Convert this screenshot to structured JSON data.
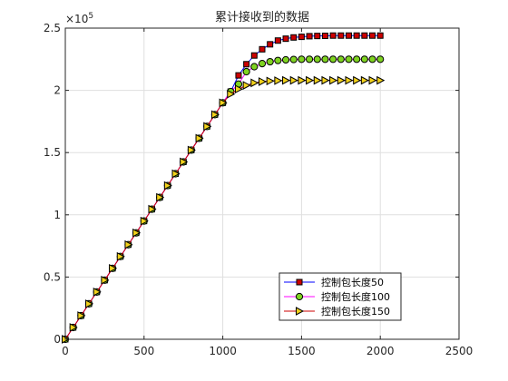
{
  "chart_data": {
    "type": "line",
    "title": "累计接收到的数据",
    "xlabel": "",
    "ylabel": "",
    "xlim": [
      0,
      2500
    ],
    "ylim": [
      0,
      2.5
    ],
    "y_exponent_label": "×10",
    "y_exponent_power": "5",
    "xticks": [
      0,
      500,
      1000,
      1500,
      2000,
      2500
    ],
    "xtick_labels": [
      "0",
      "500",
      "1000",
      "1500",
      "2000",
      "2500"
    ],
    "yticks": [
      0,
      0.5,
      1,
      1.5,
      2,
      2.5
    ],
    "ytick_labels": [
      "0",
      "0.5",
      "1",
      "1.5",
      "2",
      "2.5"
    ],
    "grid": true,
    "legend_position": "bottom-right",
    "x": [
      0,
      50,
      100,
      150,
      200,
      250,
      300,
      350,
      400,
      450,
      500,
      550,
      600,
      650,
      700,
      750,
      800,
      850,
      900,
      950,
      1000,
      1050,
      1100,
      1150,
      1200,
      1250,
      1300,
      1350,
      1400,
      1450,
      1500,
      1550,
      1600,
      1650,
      1700,
      1750,
      1800,
      1850,
      1900,
      1950,
      2000
    ],
    "series": [
      {
        "name": "控制包长度50",
        "line_color": "#0000ff",
        "marker": "square",
        "marker_fill": "#cc0000",
        "values": [
          0,
          0.095,
          0.19,
          0.285,
          0.38,
          0.475,
          0.57,
          0.665,
          0.76,
          0.855,
          0.95,
          1.045,
          1.14,
          1.235,
          1.33,
          1.425,
          1.52,
          1.615,
          1.71,
          1.805,
          1.9,
          1.99,
          2.12,
          2.21,
          2.28,
          2.33,
          2.37,
          2.4,
          2.415,
          2.425,
          2.43,
          2.435,
          2.437,
          2.438,
          2.44,
          2.44,
          2.44,
          2.44,
          2.44,
          2.44,
          2.44
        ]
      },
      {
        "name": "控制包长度100",
        "line_color": "#ff00ff",
        "marker": "circle",
        "marker_fill": "#7fd321",
        "values": [
          0,
          0.095,
          0.19,
          0.285,
          0.38,
          0.475,
          0.57,
          0.665,
          0.76,
          0.855,
          0.95,
          1.045,
          1.14,
          1.235,
          1.33,
          1.425,
          1.52,
          1.615,
          1.71,
          1.805,
          1.9,
          1.99,
          2.05,
          2.15,
          2.19,
          2.215,
          2.23,
          2.24,
          2.245,
          2.248,
          2.25,
          2.25,
          2.25,
          2.25,
          2.25,
          2.25,
          2.25,
          2.25,
          2.25,
          2.25,
          2.25
        ]
      },
      {
        "name": "控制包长度150",
        "line_color": "#cc0000",
        "marker": "triangle-right",
        "marker_fill": "#f2d21b",
        "values": [
          0,
          0.095,
          0.19,
          0.285,
          0.38,
          0.475,
          0.57,
          0.665,
          0.76,
          0.855,
          0.95,
          1.045,
          1.14,
          1.235,
          1.33,
          1.425,
          1.52,
          1.615,
          1.71,
          1.805,
          1.9,
          1.97,
          2.01,
          2.04,
          2.06,
          2.07,
          2.075,
          2.078,
          2.08,
          2.08,
          2.08,
          2.08,
          2.08,
          2.08,
          2.08,
          2.08,
          2.08,
          2.08,
          2.08,
          2.08,
          2.08
        ]
      }
    ]
  }
}
